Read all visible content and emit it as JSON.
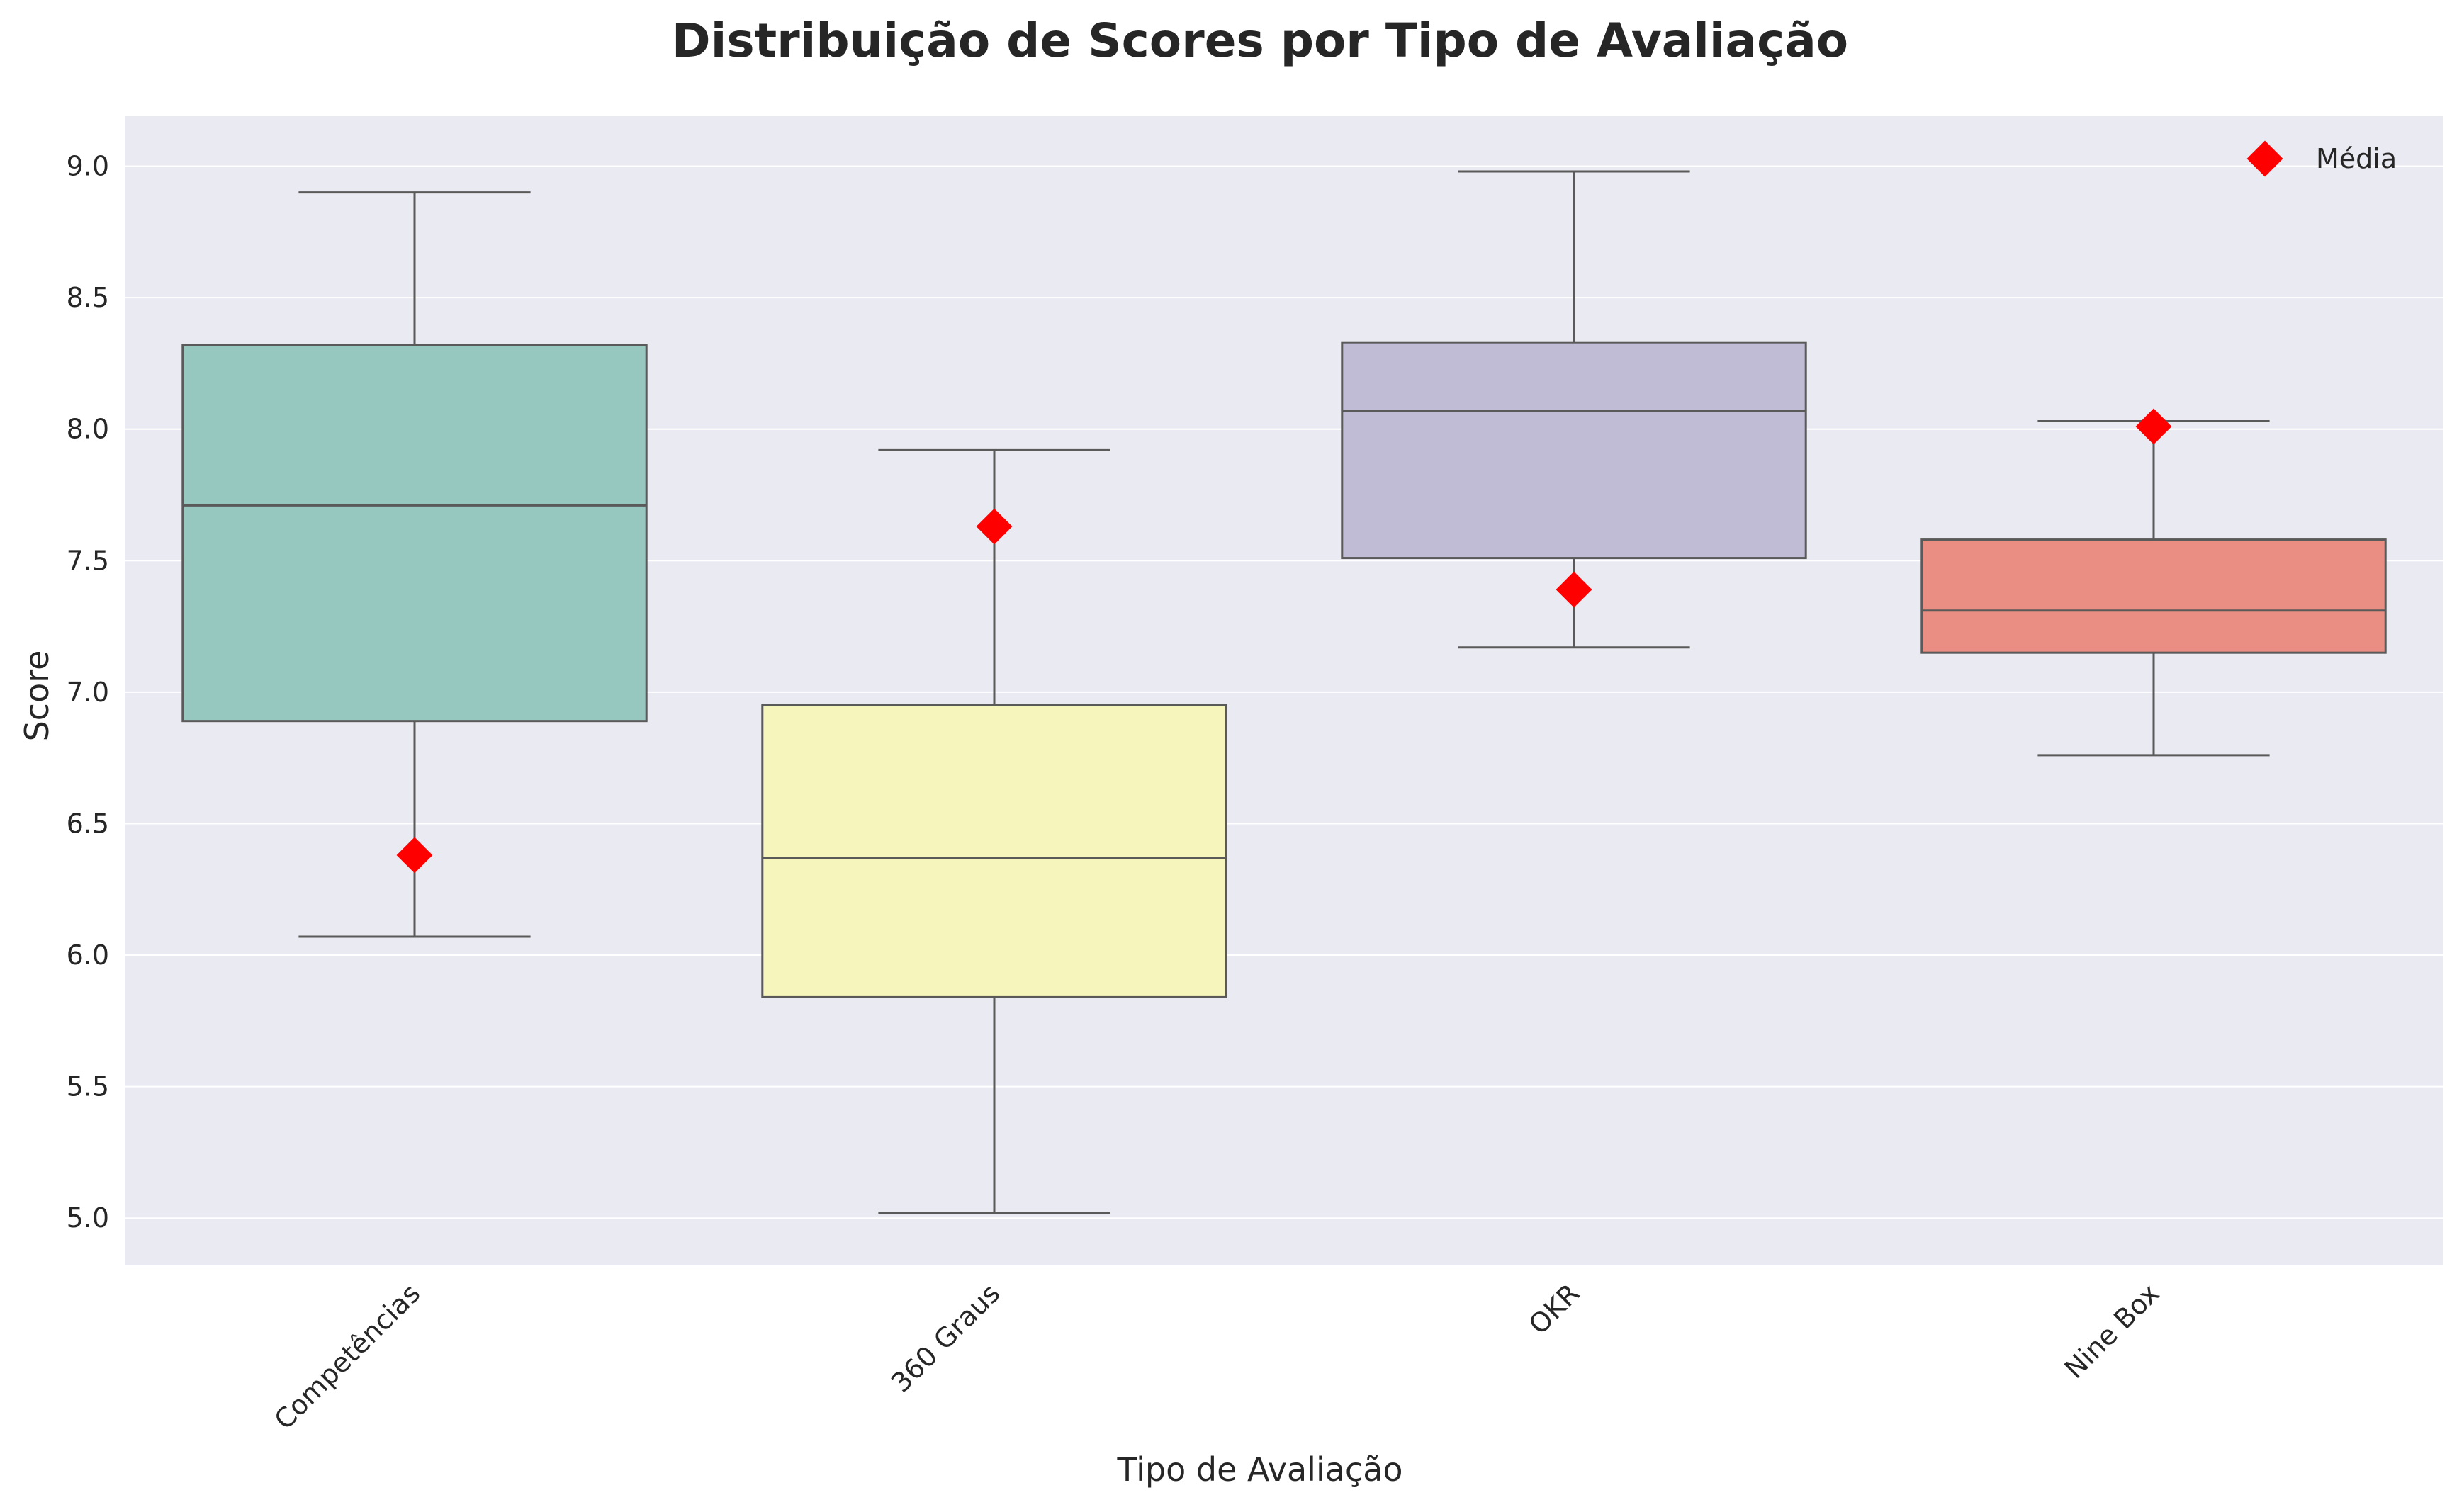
{
  "chart_data": {
    "type": "box",
    "title": "Distribuição de Scores por Tipo de Avaliação",
    "xlabel": "Tipo de Avaliação",
    "ylabel": "Score",
    "ylim": [
      4.82,
      9.19
    ],
    "yticks": [
      "5.0",
      "5.5",
      "6.0",
      "6.5",
      "7.0",
      "7.5",
      "8.0",
      "8.5",
      "9.0"
    ],
    "grid": true,
    "legend": {
      "placement": "top-right",
      "label": "Média"
    },
    "categories": [
      "Competências",
      "360 Graus",
      "OKR",
      "Nine Box"
    ],
    "boxes": [
      {
        "category": "Competências",
        "whisker_low": 6.07,
        "q1": 6.89,
        "median": 7.71,
        "q3": 8.32,
        "whisker_high": 8.9,
        "mean": 6.38,
        "color": "#97c8c0"
      },
      {
        "category": "360 Graus",
        "whisker_low": 5.02,
        "q1": 5.84,
        "median": 6.37,
        "q3": 6.95,
        "whisker_high": 7.92,
        "mean": 7.63,
        "color": "#f6f5bc"
      },
      {
        "category": "OKR",
        "whisker_low": 7.17,
        "q1": 7.51,
        "median": 8.07,
        "q3": 8.33,
        "whisker_high": 8.98,
        "mean": 7.39,
        "color": "#c1bcd5"
      },
      {
        "category": "Nine Box",
        "whisker_low": 6.76,
        "q1": 7.15,
        "median": 7.31,
        "q3": 7.58,
        "whisker_high": 8.03,
        "mean": 8.01,
        "color": "#ea8d82"
      }
    ],
    "colors": {
      "background": "#eaeaf2",
      "grid": "#ffffff",
      "box_edge": "#5a5a5a",
      "mean_marker": "#ff0000"
    }
  }
}
